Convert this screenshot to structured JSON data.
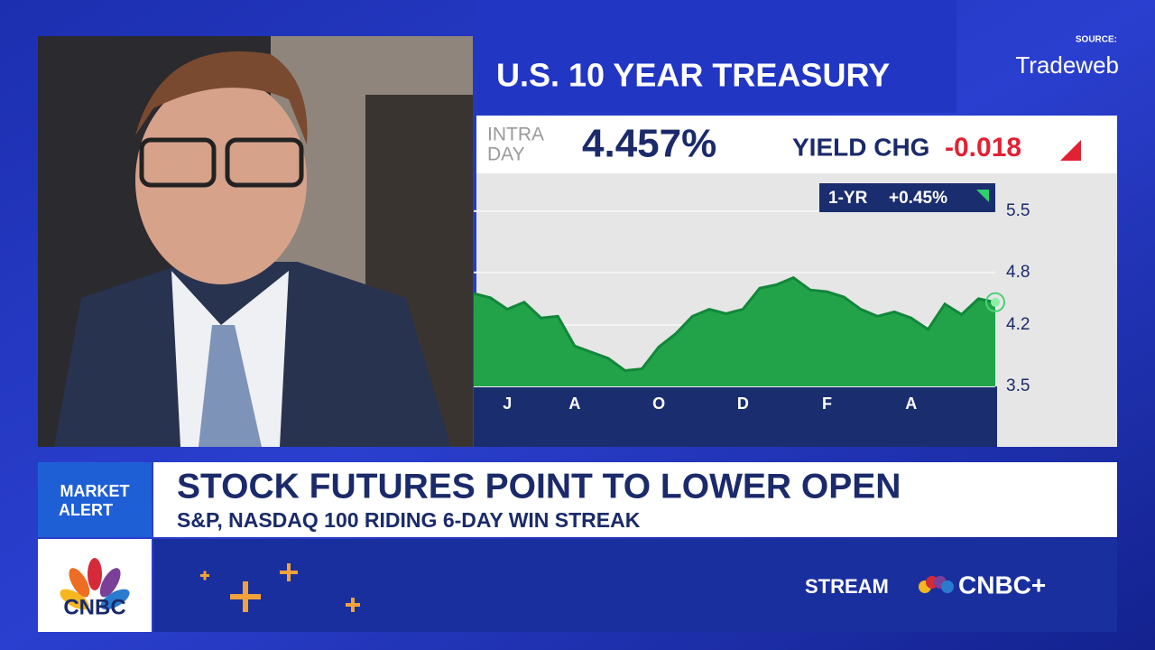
{
  "header": {
    "title": "U.S. 10 YEAR TREASURY",
    "source_label": "SOURCE:",
    "source_name": "Tradeweb"
  },
  "quote": {
    "intraday_label": [
      "INTRA",
      "DAY"
    ],
    "yield": "4.457%",
    "change_label": "YIELD CHG",
    "change": "-0.018"
  },
  "badge": {
    "label": "1-YR",
    "change": "+0.45%"
  },
  "chart_data": {
    "type": "area",
    "color": "#22a34a",
    "line_color": "#12873a",
    "categories": [
      null,
      null,
      "J",
      null,
      null,
      null,
      "A",
      null,
      null,
      null,
      null,
      "O",
      null,
      null,
      null,
      null,
      "D",
      null,
      null,
      null,
      null,
      "F",
      null,
      null,
      null,
      null,
      "A",
      null,
      null,
      null,
      null,
      null
    ],
    "values": [
      4.56,
      4.51,
      4.38,
      4.46,
      4.28,
      4.3,
      3.96,
      3.89,
      3.82,
      3.68,
      3.7,
      3.95,
      4.1,
      4.3,
      4.38,
      4.33,
      4.38,
      4.62,
      4.66,
      4.74,
      4.6,
      4.58,
      4.52,
      4.38,
      4.3,
      4.35,
      4.28,
      4.15,
      4.44,
      4.32,
      4.5,
      4.46
    ],
    "ylim": [
      3.5,
      5.9
    ],
    "yticks": [
      5.5,
      4.8,
      4.2,
      3.5
    ],
    "grid": true
  },
  "banner": {
    "alert": [
      "MARKET",
      "ALERT"
    ],
    "headline": "STOCK FUTURES POINT TO LOWER OPEN",
    "subhead": "S&P, NASDAQ 100 RIDING 6-DAY WIN STREAK"
  },
  "footer": {
    "logo": "CNBC",
    "stream": "STREAM",
    "brand": "CNBC+"
  }
}
